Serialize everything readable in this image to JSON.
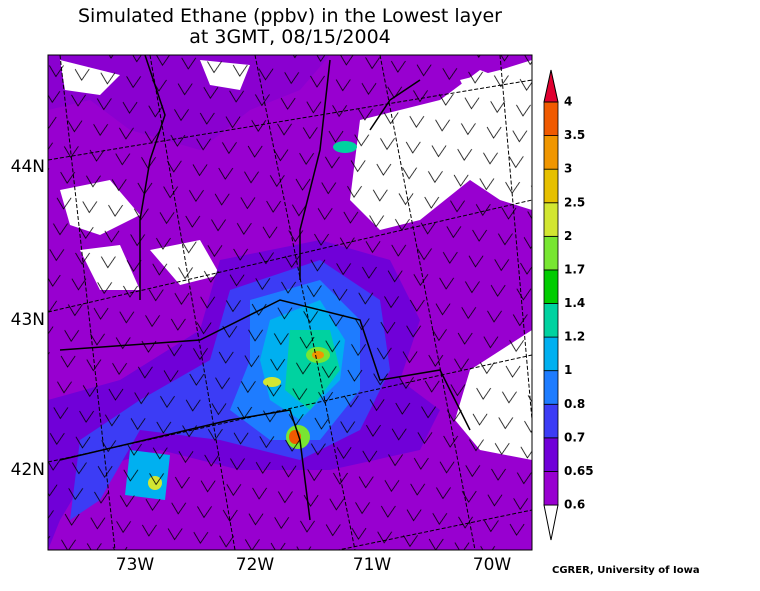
{
  "title": [
    "Simulated Ethane (ppbv) in the Lowest layer",
    "at 3GMT, 08/15/2004"
  ],
  "latitude_labels": [
    "44N",
    "43N",
    "42N"
  ],
  "longitude_labels": [
    "73W",
    "72W",
    "71W",
    "70W"
  ],
  "colorbar": {
    "levels": [
      {
        "label": "0.6",
        "color": "#9800d0"
      },
      {
        "label": "0.65",
        "color": "#7000d8"
      },
      {
        "label": "0.7",
        "color": "#3c3cf5"
      },
      {
        "label": "0.8",
        "color": "#1e7cff"
      },
      {
        "label": "1",
        "color": "#00b0f0"
      },
      {
        "label": "1.2",
        "color": "#00d2a0"
      },
      {
        "label": "1.4",
        "color": "#00cc00"
      },
      {
        "label": "1.7",
        "color": "#78e632"
      },
      {
        "label": "2",
        "color": "#d2e632"
      },
      {
        "label": "2.5",
        "color": "#e6c000"
      },
      {
        "label": "3",
        "color": "#f09600"
      },
      {
        "label": "3.5",
        "color": "#f05a00"
      },
      {
        "label": "4",
        "color": "#e00030"
      }
    ]
  },
  "credit": "CGRER, University of Iowa"
}
